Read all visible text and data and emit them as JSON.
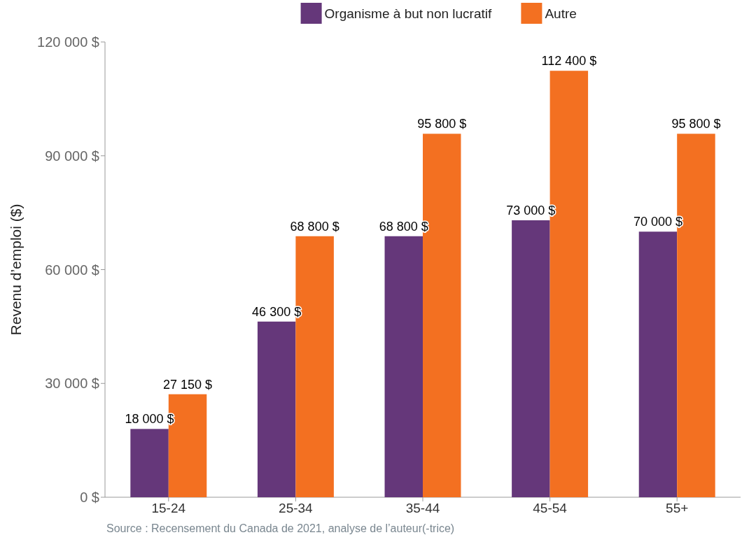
{
  "chart_data": {
    "type": "bar",
    "ylabel": "Revenu d’emploi ($)",
    "categories": [
      "15-24",
      "25-34",
      "35-44",
      "45-54",
      "55+"
    ],
    "series": [
      {
        "name": "Organisme à but non lucratif",
        "color": "#65377a",
        "values": [
          18000,
          46300,
          68800,
          73000,
          70000
        ],
        "value_labels": [
          "18 000 $",
          "46 300 $",
          "68 800 $",
          "73 000 $",
          "70 000 $"
        ]
      },
      {
        "name": "Autre",
        "color": "#f37021",
        "values": [
          27150,
          68800,
          95800,
          112400,
          95800
        ],
        "value_labels": [
          "27 150 $",
          "68 800 $",
          "95 800 $",
          "112 400 $",
          "95 800 $"
        ]
      }
    ],
    "ylim": [
      0,
      120000
    ],
    "yticks": [
      {
        "value": 0,
        "label": "0 $"
      },
      {
        "value": 30000,
        "label": "30 000 $"
      },
      {
        "value": 60000,
        "label": "60 000 $"
      },
      {
        "value": 90000,
        "label": "90 000 $"
      },
      {
        "value": 120000,
        "label": "120 000 $"
      }
    ],
    "legend": "top",
    "grid": false,
    "annotations": [
      "Source : Recensement du Canada de 2021, analyse de l’auteur(-trice)"
    ]
  }
}
